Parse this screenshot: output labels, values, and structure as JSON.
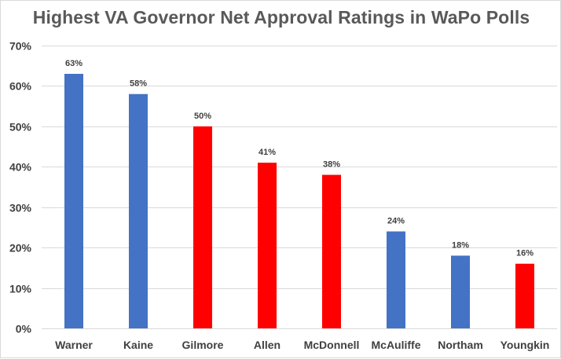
{
  "chart_data": {
    "type": "bar",
    "title": "Highest VA Governor Net Approval Ratings in WaPo Polls",
    "xlabel": "",
    "ylabel": "",
    "categories": [
      "Warner",
      "Kaine",
      "Gilmore",
      "Allen",
      "McDonnell",
      "McAuliffe",
      "Northam",
      "Youngkin"
    ],
    "values": [
      63,
      58,
      50,
      41,
      38,
      24,
      18,
      16
    ],
    "data_labels": [
      "63%",
      "58%",
      "50%",
      "41%",
      "38%",
      "24%",
      "18%",
      "16%"
    ],
    "bar_colors": [
      "#4472c4",
      "#4472c4",
      "#ff0000",
      "#ff0000",
      "#ff0000",
      "#4472c4",
      "#4472c4",
      "#ff0000"
    ],
    "ylim": [
      0,
      70
    ],
    "y_ticks": [
      0,
      10,
      20,
      30,
      40,
      50,
      60,
      70
    ],
    "y_tick_labels": [
      "0%",
      "10%",
      "20%",
      "30%",
      "40%",
      "50%",
      "60%",
      "70%"
    ],
    "grid": true,
    "legend": "none"
  },
  "colors": {
    "democrat": "#4472c4",
    "republican": "#ff0000",
    "gridline": "#d9d9d9",
    "text": "#404040",
    "title": "#595959"
  }
}
